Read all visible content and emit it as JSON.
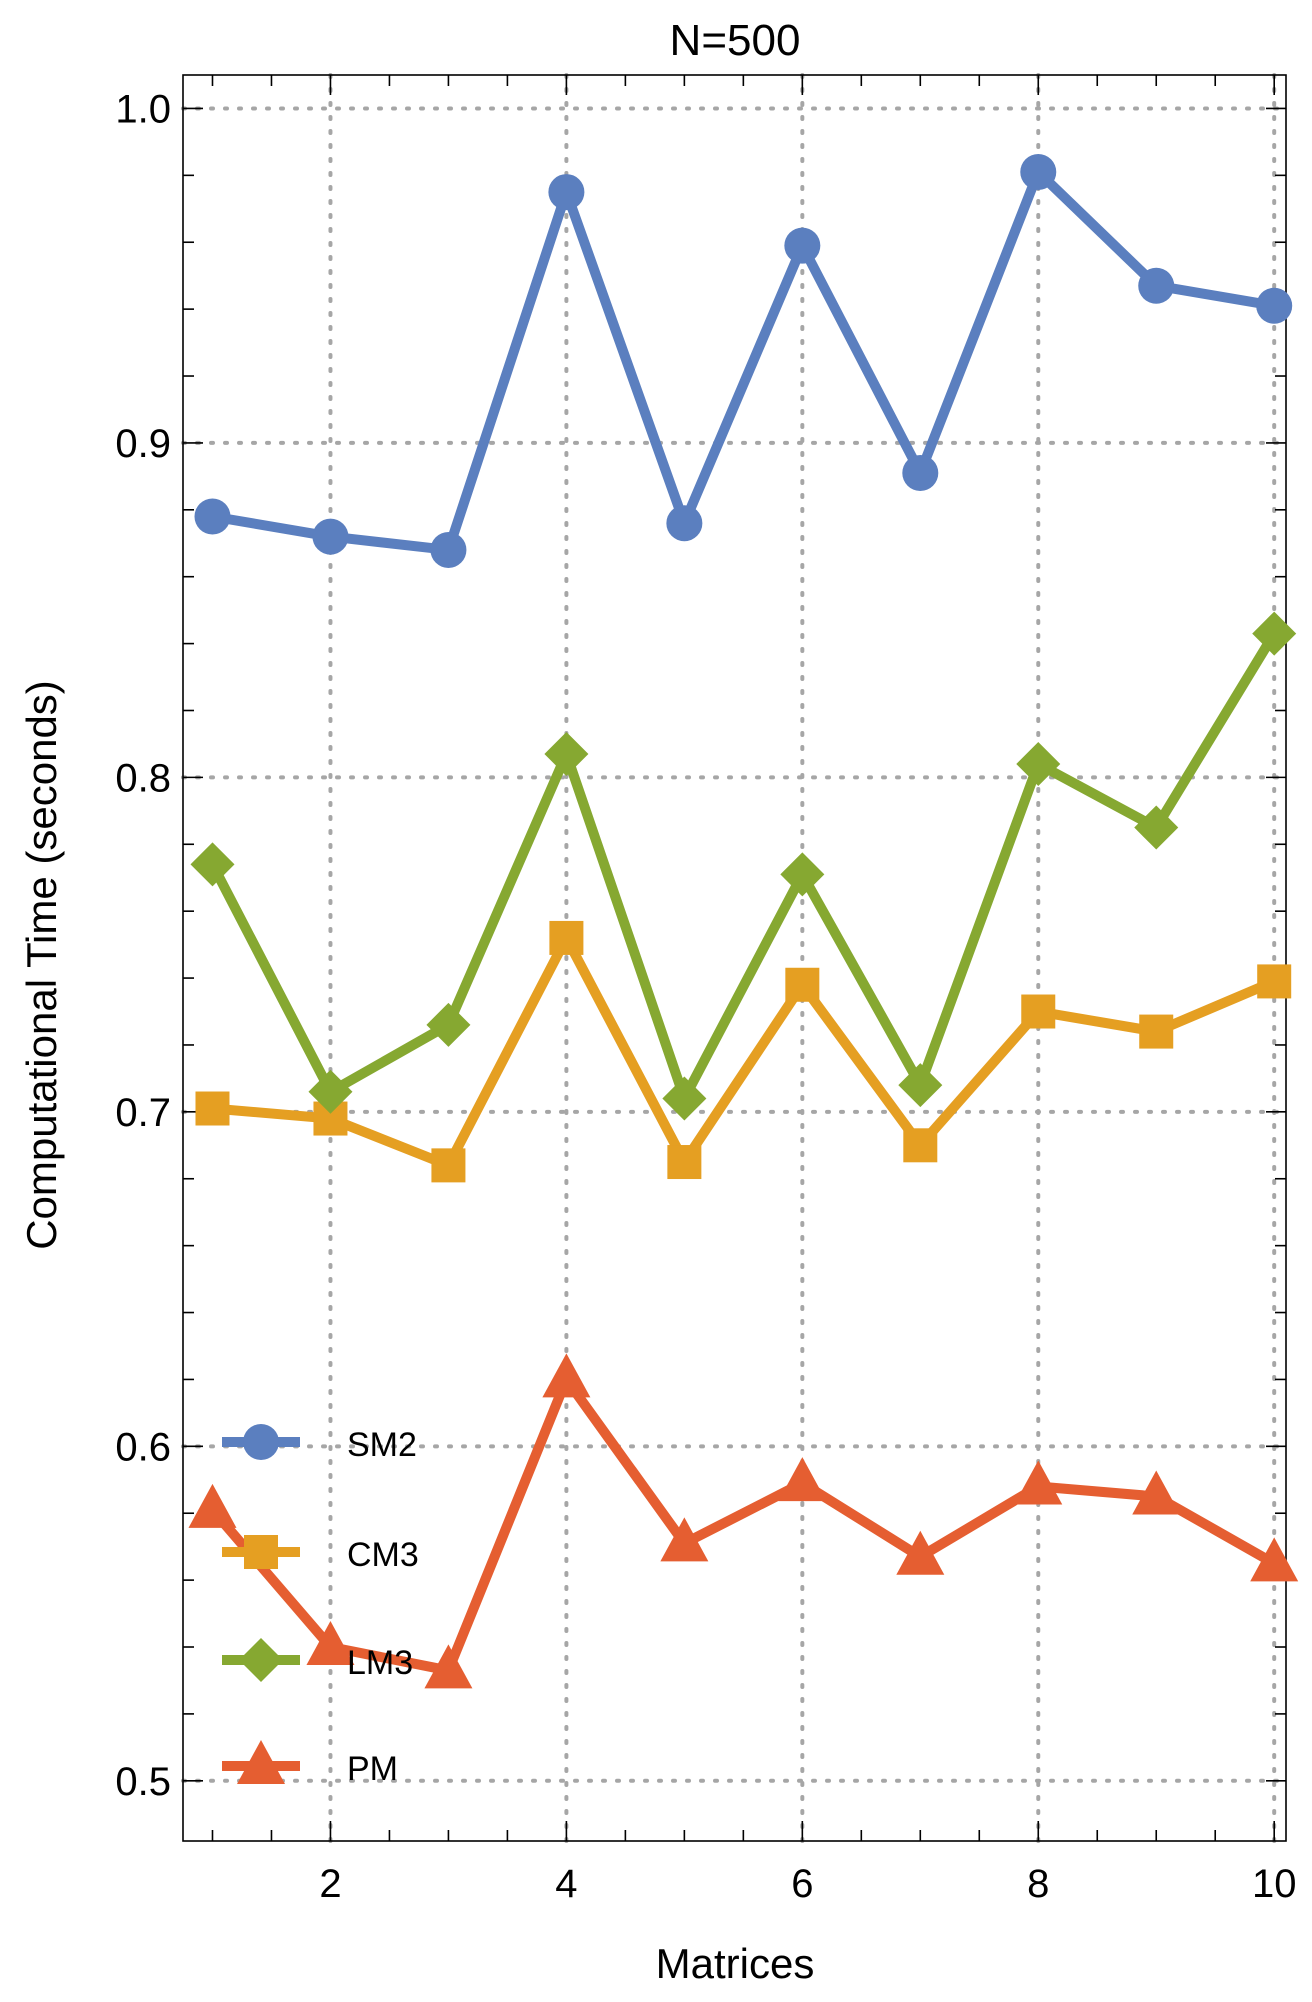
{
  "chart_data": {
    "type": "line",
    "title": "N=500",
    "xlabel": "Matrices",
    "ylabel": "Computational Time (seconds)",
    "x": [
      1,
      2,
      3,
      4,
      5,
      6,
      7,
      8,
      9,
      10
    ],
    "xlim": [
      0.75,
      10.1
    ],
    "ylim": [
      0.482,
      1.01
    ],
    "xticks": [
      2,
      4,
      6,
      8,
      10
    ],
    "xtick_labels": [
      "2",
      "4",
      "6",
      "8",
      "10"
    ],
    "yticks": [
      0.5,
      0.6,
      0.7,
      0.8,
      0.9,
      1.0
    ],
    "ytick_labels": [
      "0.5",
      "0.6",
      "0.7",
      "0.8",
      "0.9",
      "1.0"
    ],
    "grid": "dotted at major ticks",
    "legend_position": "lower-left",
    "series": [
      {
        "name": "SM2",
        "marker": "circle",
        "color": "#5b7fbf",
        "values": [
          0.878,
          0.872,
          0.868,
          0.975,
          0.876,
          0.959,
          0.891,
          0.981,
          0.947,
          0.941
        ]
      },
      {
        "name": "CM3",
        "marker": "square",
        "color": "#e59f22",
        "values": [
          0.701,
          0.698,
          0.684,
          0.752,
          0.685,
          0.738,
          0.69,
          0.73,
          0.724,
          0.739
        ]
      },
      {
        "name": "LM3",
        "marker": "diamond",
        "color": "#86a831",
        "values": [
          0.774,
          0.706,
          0.726,
          0.807,
          0.704,
          0.771,
          0.708,
          0.804,
          0.785,
          0.843
        ]
      },
      {
        "name": "PM",
        "marker": "triangle",
        "color": "#e55e31",
        "values": [
          0.581,
          0.54,
          0.533,
          0.62,
          0.571,
          0.589,
          0.567,
          0.588,
          0.585,
          0.565
        ]
      }
    ]
  }
}
